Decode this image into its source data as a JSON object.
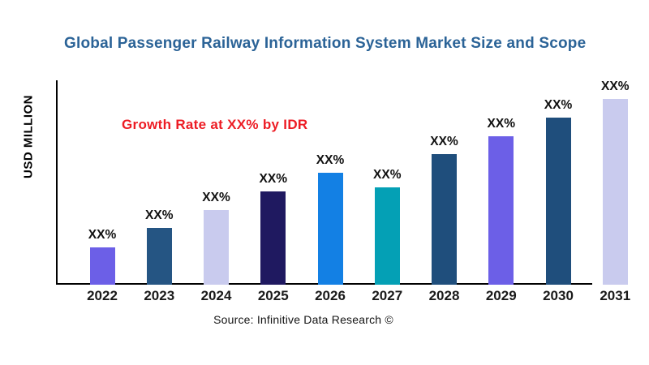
{
  "header": {
    "title": "Global Passenger Railway Information System  Market Size and Scope",
    "title_color": "#2b6397"
  },
  "annotation": {
    "text": "Growth Rate at XX% by IDR",
    "color": "#ed1c24"
  },
  "footer": {
    "source": "Source: Infinitive Data Research ©"
  },
  "chart_data": {
    "type": "bar",
    "title": "Global Passenger Railway Information System  Market Size and Scope",
    "xlabel": "",
    "ylabel": "USD MILLION",
    "categories": [
      "2022",
      "2023",
      "2024",
      "2025",
      "2026",
      "2027",
      "2028",
      "2029",
      "2030",
      "2031"
    ],
    "bar_value_labels": [
      "XX%",
      "XX%",
      "XX%",
      "XX%",
      "XX%",
      "XX%",
      "XX%",
      "XX%",
      "XX%",
      "XX%"
    ],
    "values_estimated_relative": [
      46,
      70,
      92,
      115,
      138,
      120,
      161,
      183,
      206,
      229
    ],
    "value_axis_units": "USD MILLION",
    "numeric_values_shown": false,
    "bar_colors": [
      "#6c5fe7",
      "#255583",
      "#c9cbee",
      "#1f1960",
      "#1380e4",
      "#04a0b5",
      "#1f4e7c",
      "#6c5fe7",
      "#1f4e7c",
      "#c9cbee"
    ],
    "grid": false,
    "legend": false,
    "y_ticks_visible": false,
    "annotation": "Growth Rate at XX% by IDR",
    "source": "Source: Infinitive Data Research ©"
  }
}
